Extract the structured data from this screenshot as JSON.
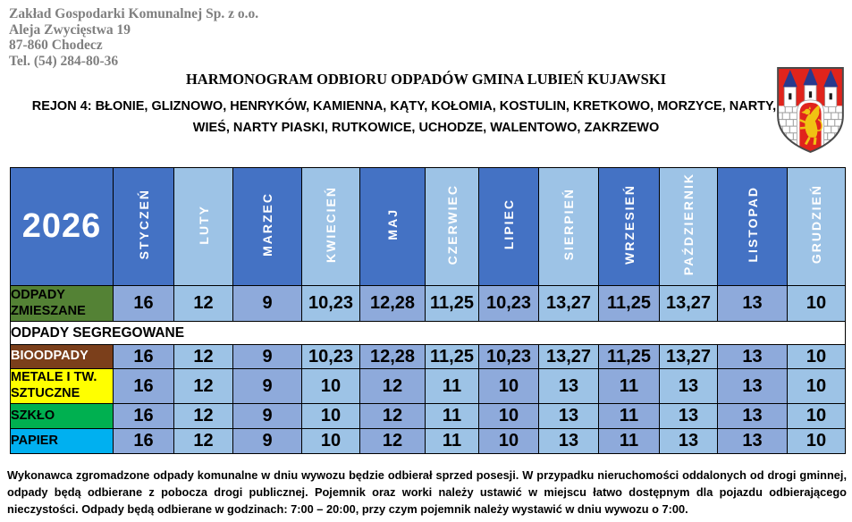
{
  "company": {
    "lines": [
      "Zakład Gospodarki Komunalnej Sp. z o.o.",
      "Aleja Zwycięstwa 19",
      "87-860 Chodecz",
      "Tel. (54) 284-80-36"
    ]
  },
  "title": "HARMONOGRAM ODBIORU ODPADÓW GMINA LUBIEŃ KUJAWSKI",
  "region": "REJON 4: BŁONIE, GLIZNOWO, HENRYKÓW, KAMIENNA, KĄTY, KOŁOMIA, KOSTULIN, KRETKOWO, MORZYCE, NARTY, NOWA WIEŚ, NARTY PIASKI, RUTKOWICE, UCHODZE, WALENTOWO, ZAKRZEWO",
  "crest": {
    "name": "herb-gminy-lubien-kujawski"
  },
  "schedule": {
    "year": "2026",
    "months": [
      "STYCZEŃ",
      "LUTY",
      "MARZEC",
      "KWIECIEŃ",
      "MAJ",
      "CZERWIEC",
      "LIPIEC",
      "SIERPIEŃ",
      "WRZESIEŃ",
      "PAŹDZIERNIK",
      "LISTOPAD",
      "GRUDZIEŃ"
    ],
    "section_label": "ODPADY SEGREGOWANE",
    "rows": [
      {
        "label": "ODPADY ZMIESZANE",
        "bg": "#548235",
        "fg": "#000000",
        "values": [
          "16",
          "12",
          "9",
          "10,23",
          "12,28",
          "11,25",
          "10,23",
          "13,27",
          "11,25",
          "13,27",
          "13",
          "10"
        ]
      },
      {
        "label": "BIOODPADY",
        "bg": "#7B3F1B",
        "fg": "#FFFFFF",
        "values": [
          "16",
          "12",
          "9",
          "10,23",
          "12,28",
          "11,25",
          "10,23",
          "13,27",
          "11,25",
          "13,27",
          "13",
          "10"
        ]
      },
      {
        "label": "METALE I TW. SZTUCZNE",
        "bg": "#FFFF00",
        "fg": "#000000",
        "values": [
          "16",
          "12",
          "9",
          "10",
          "12",
          "11",
          "10",
          "13",
          "11",
          "13",
          "13",
          "10"
        ]
      },
      {
        "label": "SZKŁO",
        "bg": "#00B050",
        "fg": "#000000",
        "values": [
          "16",
          "12",
          "9",
          "10",
          "12",
          "11",
          "10",
          "13",
          "11",
          "13",
          "13",
          "10"
        ]
      },
      {
        "label": "PAPIER",
        "bg": "#00B0F0",
        "fg": "#000000",
        "values": [
          "16",
          "12",
          "9",
          "10",
          "12",
          "11",
          "10",
          "13",
          "11",
          "13",
          "13",
          "10"
        ]
      }
    ]
  },
  "colors": {
    "header_dark": "#4472C4",
    "header_light": "#9DC3E6",
    "cell_dark": "#8EAADB",
    "cell_light": "#9DC3E6",
    "company_text": "#7F7F7F",
    "crest_red": "#E0241C",
    "crest_blue": "#283A8E",
    "crest_gold": "#F0C213"
  },
  "footer_note": "Wykonawca zgromadzone odpady komunalne w dniu wywozu będzie odbierał sprzed posesji. W przypadku nieruchomości oddalonych od drogi gminnej, odpady będą odbierane z pobocza drogi publicznej. Pojemnik oraz worki należy ustawić w miejscu łatwo dostępnym dla pojazdu odbierającego nieczystości. Odpady będą odbierane w godzinach: 7:00 – 20:00, przy czym pojemnik należy wystawić w dniu wywozu o 7:00."
}
